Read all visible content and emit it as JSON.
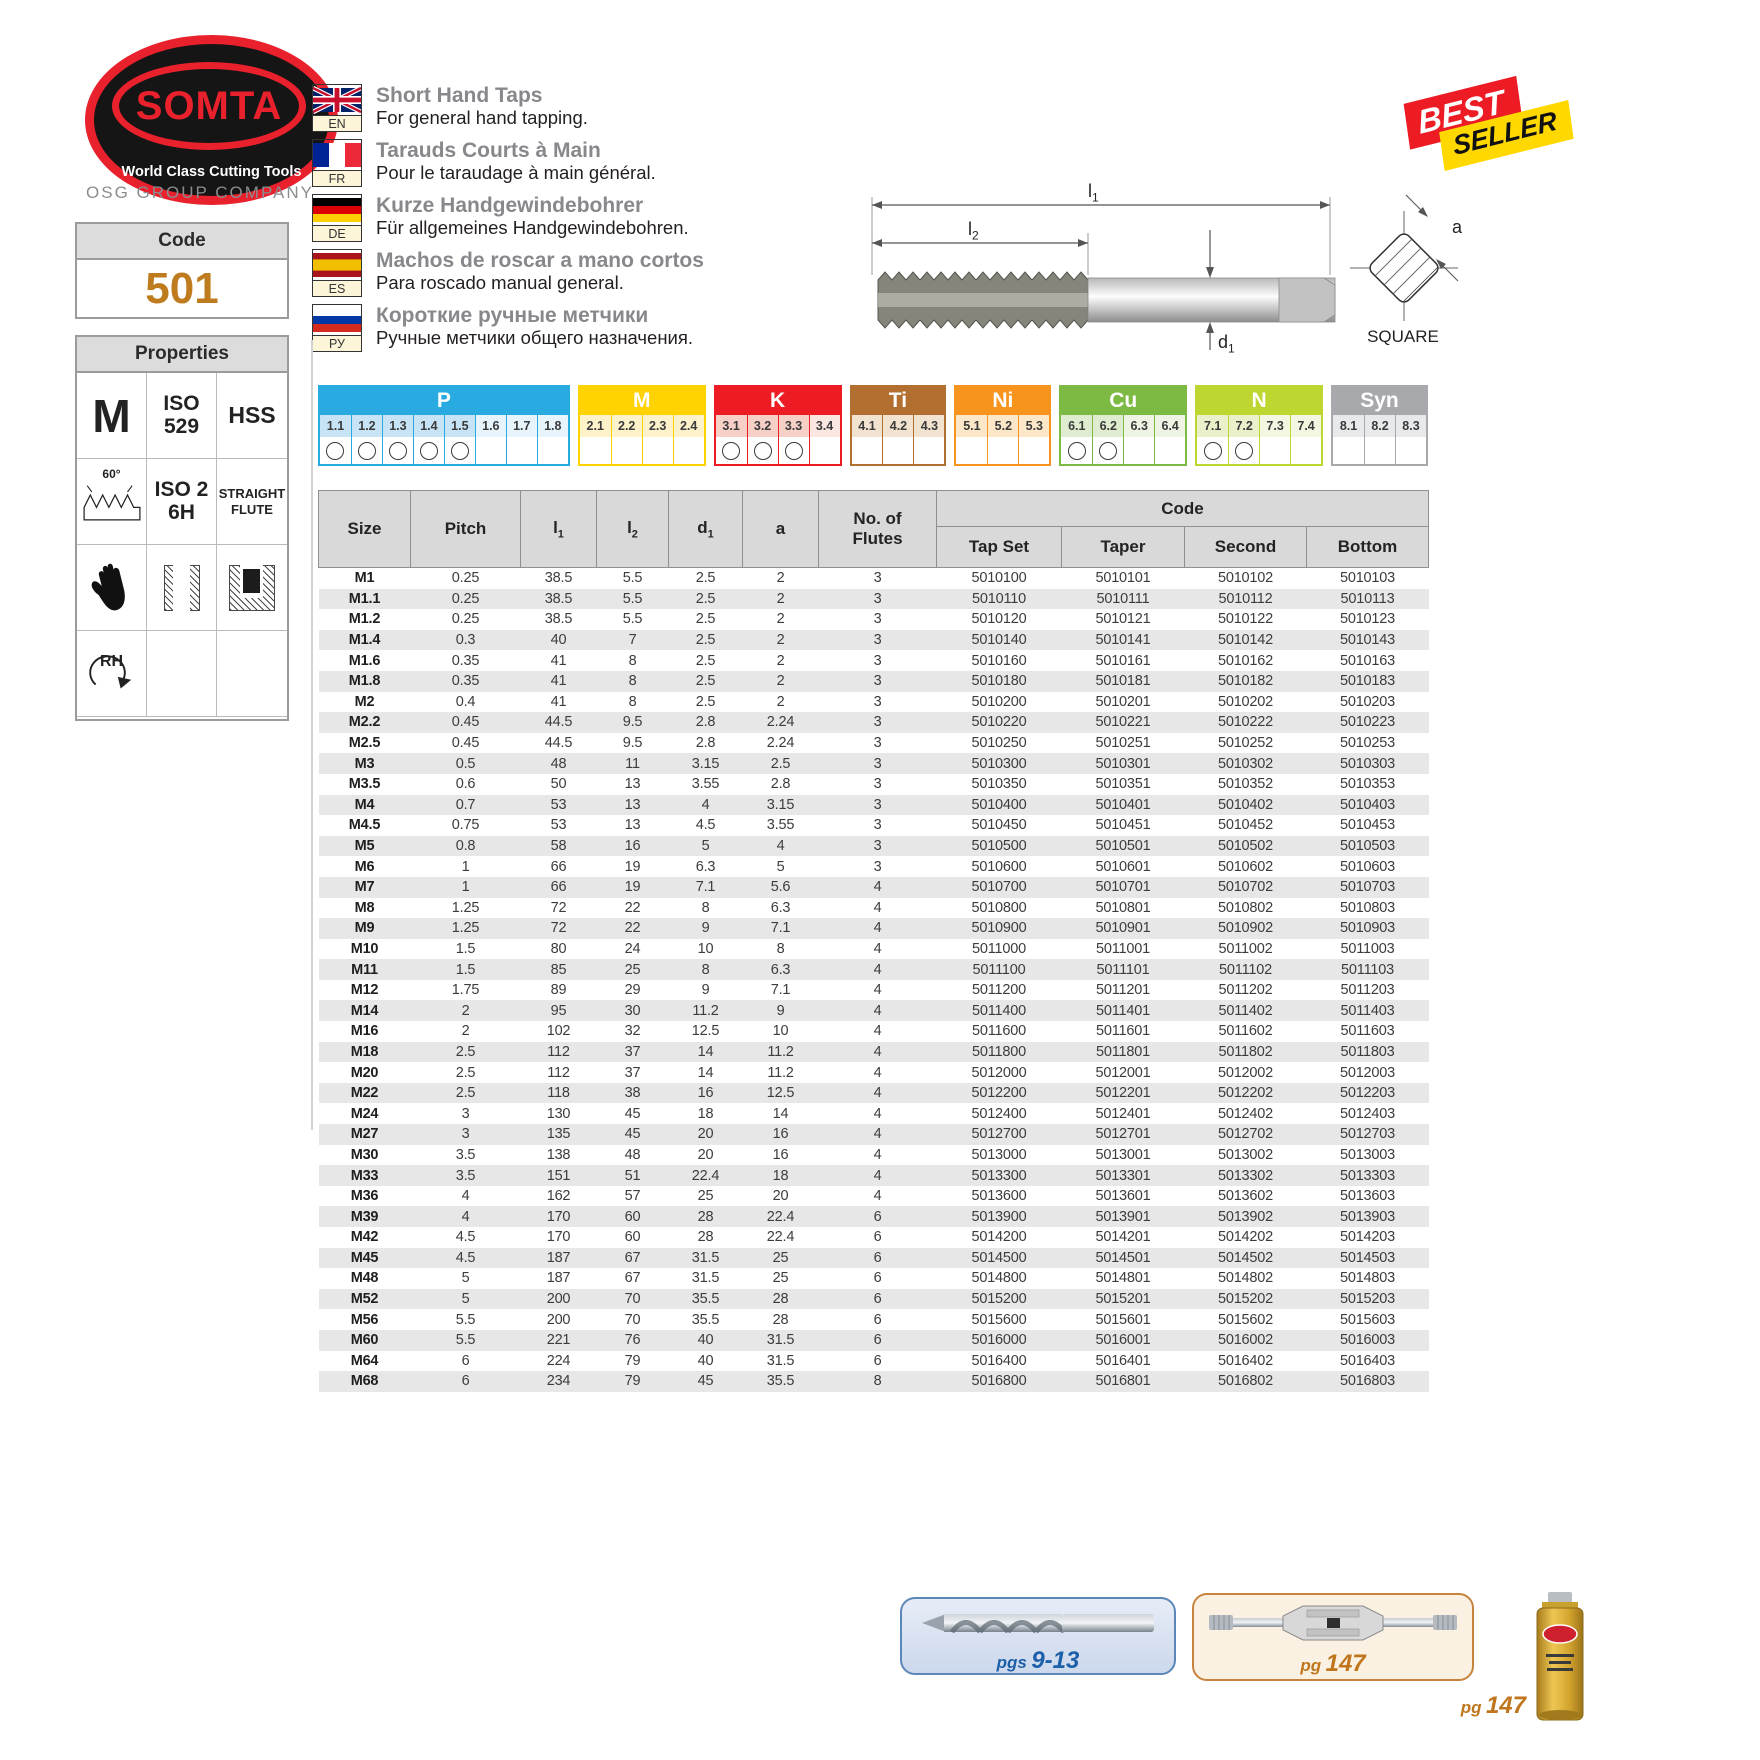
{
  "brand": {
    "name": "SOMTA",
    "tagline": "World Class Cutting Tools",
    "group": "OSG GROUP COMPANY"
  },
  "code_box": {
    "label": "Code",
    "value": "501"
  },
  "properties": {
    "header": "Properties",
    "thread_form": "M",
    "standard": "ISO\n529",
    "material": "HSS",
    "thread_angle": "60°",
    "tolerance": "ISO 2\n6H",
    "flute_type": "STRAIGHT\nFLUTE",
    "hand": "RH"
  },
  "languages": [
    {
      "code": "EN",
      "title": "Short Hand Taps",
      "subtitle": "For general hand tapping."
    },
    {
      "code": "FR",
      "title": "Tarauds Courts à Main",
      "subtitle": "Pour le taraudage à main général."
    },
    {
      "code": "DE",
      "title": "Kurze Handgewindebohrer",
      "subtitle": "Für allgemeines Handgewindebohren."
    },
    {
      "code": "ES",
      "title": "Machos de roscar a mano cortos",
      "subtitle": "Para roscado manual general."
    },
    {
      "code": "РУ",
      "title": "Короткие ручные метчики",
      "subtitle": "Ручные метчики общего назначения."
    }
  ],
  "badge": {
    "top": "BEST",
    "bottom": "SELLER"
  },
  "diagram": {
    "l1": {
      "base": "l",
      "sub": "1"
    },
    "l2": {
      "base": "l",
      "sub": "2"
    },
    "d1": {
      "base": "d",
      "sub": "1"
    },
    "a": "a",
    "caption": "SQUARE"
  },
  "materials": {
    "sections": [
      {
        "name": "P",
        "color": "#29abe2",
        "tint": "#e7f4fc",
        "tint_marked": "#c6e4f6",
        "cols": [
          "1.1",
          "1.2",
          "1.3",
          "1.4",
          "1.5",
          "1.6",
          "1.7",
          "1.8"
        ],
        "marked": [
          "1.1",
          "1.2",
          "1.3",
          "1.4",
          "1.5"
        ]
      },
      {
        "name": "M",
        "color": "#ffd200",
        "tint": "#fdf2ca",
        "tint_marked": "#fdf2ca",
        "cols": [
          "2.1",
          "2.2",
          "2.3",
          "2.4"
        ],
        "marked": []
      },
      {
        "name": "K",
        "color": "#ed1c24",
        "tint": "#fbe7e1",
        "tint_marked": "#f6cfc6",
        "cols": [
          "3.1",
          "3.2",
          "3.3",
          "3.4"
        ],
        "marked": [
          "3.1",
          "3.2",
          "3.3"
        ]
      },
      {
        "name": "Ti",
        "color": "#b26f2f",
        "tint": "#f2e2d0",
        "tint_marked": "#f2e2d0",
        "cols": [
          "4.1",
          "4.2",
          "4.3"
        ],
        "marked": []
      },
      {
        "name": "Ni",
        "color": "#f7941d",
        "tint": "#fde7c9",
        "tint_marked": "#fde7c9",
        "cols": [
          "5.1",
          "5.2",
          "5.3"
        ],
        "marked": []
      },
      {
        "name": "Cu",
        "color": "#7dba43",
        "tint": "#edf4e4",
        "tint_marked": "#dfecd0",
        "cols": [
          "6.1",
          "6.2",
          "6.3",
          "6.4"
        ],
        "marked": [
          "6.1",
          "6.2"
        ]
      },
      {
        "name": "N",
        "color": "#bed62f",
        "tint": "#f3f6e0",
        "tint_marked": "#eaf1ca",
        "cols": [
          "7.1",
          "7.2",
          "7.3",
          "7.4"
        ],
        "marked": [
          "7.1",
          "7.2"
        ]
      },
      {
        "name": "Syn",
        "color": "#a7a9ac",
        "tint": "#e8e9ea",
        "tint_marked": "#e8e9ea",
        "cols": [
          "8.1",
          "8.2",
          "8.3"
        ],
        "marked": []
      }
    ]
  },
  "table": {
    "code_header": "Code",
    "headers": {
      "size": "Size",
      "pitch": "Pitch",
      "l1": {
        "base": "l",
        "sub": "1"
      },
      "l2": {
        "base": "l",
        "sub": "2"
      },
      "d1": {
        "base": "d",
        "sub": "1"
      },
      "a": "a",
      "flutes": "No. of\nFlutes",
      "tap_set": "Tap Set",
      "taper": "Taper",
      "second": "Second",
      "bottom": "Bottom"
    },
    "rows": [
      [
        "M1",
        "0.25",
        "38.5",
        "5.5",
        "2.5",
        "2",
        "3",
        "5010100",
        "5010101",
        "5010102",
        "5010103"
      ],
      [
        "M1.1",
        "0.25",
        "38.5",
        "5.5",
        "2.5",
        "2",
        "3",
        "5010110",
        "5010111",
        "5010112",
        "5010113"
      ],
      [
        "M1.2",
        "0.25",
        "38.5",
        "5.5",
        "2.5",
        "2",
        "3",
        "5010120",
        "5010121",
        "5010122",
        "5010123"
      ],
      [
        "M1.4",
        "0.3",
        "40",
        "7",
        "2.5",
        "2",
        "3",
        "5010140",
        "5010141",
        "5010142",
        "5010143"
      ],
      [
        "M1.6",
        "0.35",
        "41",
        "8",
        "2.5",
        "2",
        "3",
        "5010160",
        "5010161",
        "5010162",
        "5010163"
      ],
      [
        "M1.8",
        "0.35",
        "41",
        "8",
        "2.5",
        "2",
        "3",
        "5010180",
        "5010181",
        "5010182",
        "5010183"
      ],
      [
        "M2",
        "0.4",
        "41",
        "8",
        "2.5",
        "2",
        "3",
        "5010200",
        "5010201",
        "5010202",
        "5010203"
      ],
      [
        "M2.2",
        "0.45",
        "44.5",
        "9.5",
        "2.8",
        "2.24",
        "3",
        "5010220",
        "5010221",
        "5010222",
        "5010223"
      ],
      [
        "M2.5",
        "0.45",
        "44.5",
        "9.5",
        "2.8",
        "2.24",
        "3",
        "5010250",
        "5010251",
        "5010252",
        "5010253"
      ],
      [
        "M3",
        "0.5",
        "48",
        "11",
        "3.15",
        "2.5",
        "3",
        "5010300",
        "5010301",
        "5010302",
        "5010303"
      ],
      [
        "M3.5",
        "0.6",
        "50",
        "13",
        "3.55",
        "2.8",
        "3",
        "5010350",
        "5010351",
        "5010352",
        "5010353"
      ],
      [
        "M4",
        "0.7",
        "53",
        "13",
        "4",
        "3.15",
        "3",
        "5010400",
        "5010401",
        "5010402",
        "5010403"
      ],
      [
        "M4.5",
        "0.75",
        "53",
        "13",
        "4.5",
        "3.55",
        "3",
        "5010450",
        "5010451",
        "5010452",
        "5010453"
      ],
      [
        "M5",
        "0.8",
        "58",
        "16",
        "5",
        "4",
        "3",
        "5010500",
        "5010501",
        "5010502",
        "5010503"
      ],
      [
        "M6",
        "1",
        "66",
        "19",
        "6.3",
        "5",
        "3",
        "5010600",
        "5010601",
        "5010602",
        "5010603"
      ],
      [
        "M7",
        "1",
        "66",
        "19",
        "7.1",
        "5.6",
        "4",
        "5010700",
        "5010701",
        "5010702",
        "5010703"
      ],
      [
        "M8",
        "1.25",
        "72",
        "22",
        "8",
        "6.3",
        "4",
        "5010800",
        "5010801",
        "5010802",
        "5010803"
      ],
      [
        "M9",
        "1.25",
        "72",
        "22",
        "9",
        "7.1",
        "4",
        "5010900",
        "5010901",
        "5010902",
        "5010903"
      ],
      [
        "M10",
        "1.5",
        "80",
        "24",
        "10",
        "8",
        "4",
        "5011000",
        "5011001",
        "5011002",
        "5011003"
      ],
      [
        "M11",
        "1.5",
        "85",
        "25",
        "8",
        "6.3",
        "4",
        "5011100",
        "5011101",
        "5011102",
        "5011103"
      ],
      [
        "M12",
        "1.75",
        "89",
        "29",
        "9",
        "7.1",
        "4",
        "5011200",
        "5011201",
        "5011202",
        "5011203"
      ],
      [
        "M14",
        "2",
        "95",
        "30",
        "11.2",
        "9",
        "4",
        "5011400",
        "5011401",
        "5011402",
        "5011403"
      ],
      [
        "M16",
        "2",
        "102",
        "32",
        "12.5",
        "10",
        "4",
        "5011600",
        "5011601",
        "5011602",
        "5011603"
      ],
      [
        "M18",
        "2.5",
        "112",
        "37",
        "14",
        "11.2",
        "4",
        "5011800",
        "5011801",
        "5011802",
        "5011803"
      ],
      [
        "M20",
        "2.5",
        "112",
        "37",
        "14",
        "11.2",
        "4",
        "5012000",
        "5012001",
        "5012002",
        "5012003"
      ],
      [
        "M22",
        "2.5",
        "118",
        "38",
        "16",
        "12.5",
        "4",
        "5012200",
        "5012201",
        "5012202",
        "5012203"
      ],
      [
        "M24",
        "3",
        "130",
        "45",
        "18",
        "14",
        "4",
        "5012400",
        "5012401",
        "5012402",
        "5012403"
      ],
      [
        "M27",
        "3",
        "135",
        "45",
        "20",
        "16",
        "4",
        "5012700",
        "5012701",
        "5012702",
        "5012703"
      ],
      [
        "M30",
        "3.5",
        "138",
        "48",
        "20",
        "16",
        "4",
        "5013000",
        "5013001",
        "5013002",
        "5013003"
      ],
      [
        "M33",
        "3.5",
        "151",
        "51",
        "22.4",
        "18",
        "4",
        "5013300",
        "5013301",
        "5013302",
        "5013303"
      ],
      [
        "M36",
        "4",
        "162",
        "57",
        "25",
        "20",
        "4",
        "5013600",
        "5013601",
        "5013602",
        "5013603"
      ],
      [
        "M39",
        "4",
        "170",
        "60",
        "28",
        "22.4",
        "6",
        "5013900",
        "5013901",
        "5013902",
        "5013903"
      ],
      [
        "M42",
        "4.5",
        "170",
        "60",
        "28",
        "22.4",
        "6",
        "5014200",
        "5014201",
        "5014202",
        "5014203"
      ],
      [
        "M45",
        "4.5",
        "187",
        "67",
        "31.5",
        "25",
        "6",
        "5014500",
        "5014501",
        "5014502",
        "5014503"
      ],
      [
        "M48",
        "5",
        "187",
        "67",
        "31.5",
        "25",
        "6",
        "5014800",
        "5014801",
        "5014802",
        "5014803"
      ],
      [
        "M52",
        "5",
        "200",
        "70",
        "35.5",
        "28",
        "6",
        "5015200",
        "5015201",
        "5015202",
        "5015203"
      ],
      [
        "M56",
        "5.5",
        "200",
        "70",
        "35.5",
        "28",
        "6",
        "5015600",
        "5015601",
        "5015602",
        "5015603"
      ],
      [
        "M60",
        "5.5",
        "221",
        "76",
        "40",
        "31.5",
        "6",
        "5016000",
        "5016001",
        "5016002",
        "5016003"
      ],
      [
        "M64",
        "6",
        "224",
        "79",
        "40",
        "31.5",
        "6",
        "5016400",
        "5016401",
        "5016402",
        "5016403"
      ],
      [
        "M68",
        "6",
        "234",
        "79",
        "45",
        "35.5",
        "8",
        "5016800",
        "5016801",
        "5016802",
        "5016803"
      ]
    ]
  },
  "footer": {
    "drill": {
      "prefix": "pgs",
      "pages": "9-13"
    },
    "wrench": {
      "prefix": "pg",
      "pages": "147"
    },
    "fluid": {
      "prefix": "pg",
      "pages": "147"
    }
  }
}
